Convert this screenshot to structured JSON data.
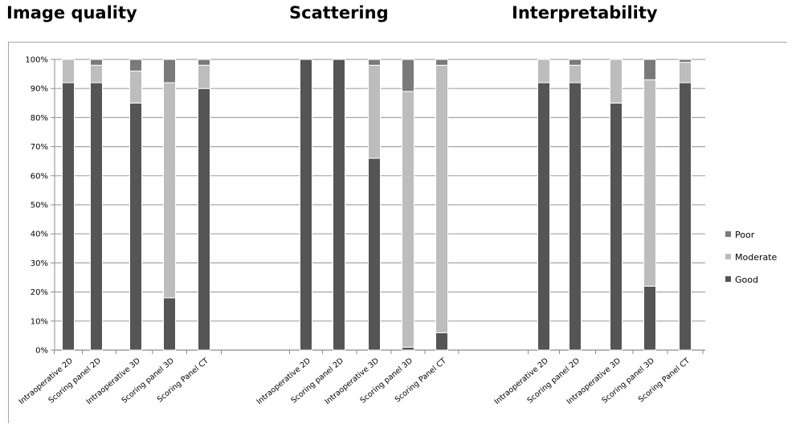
{
  "titles": [
    "Image quality",
    "Scattering",
    "Interpretability"
  ],
  "chart_data": {
    "type": "bar",
    "stacked": true,
    "percent": true,
    "y_ticks": [
      "0%",
      "10%",
      "20%",
      "30%",
      "40%",
      "50%",
      "60%",
      "70%",
      "80%",
      "90%",
      "100%"
    ],
    "ylim": [
      0,
      100
    ],
    "grid": true,
    "legend_position": "right",
    "colors": {
      "Good": "#555555",
      "Moderate": "#bdbdbd",
      "Poor": "#7a7a7a"
    },
    "legend": [
      "Poor",
      "Moderate",
      "Good"
    ],
    "groups": [
      {
        "title": "Image quality",
        "categories": [
          "Intraoperative 2D",
          "Scoring panel 2D",
          "Intraoperative 3D",
          "Scoring panel 3D",
          "Scoring Panel CT"
        ],
        "series": [
          {
            "name": "Good",
            "values": [
              92,
              92,
              85,
              18,
              90
            ]
          },
          {
            "name": "Moderate",
            "values": [
              8,
              6,
              11,
              74,
              8
            ]
          },
          {
            "name": "Poor",
            "values": [
              0,
              2,
              4,
              8,
              2
            ]
          }
        ]
      },
      {
        "title": "Scattering",
        "categories": [
          "Intraoperative 2D",
          "Scoring panel 2D",
          "Intraoperative 3D",
          "Scoring panel 3D",
          "Scoring Panel CT"
        ],
        "series": [
          {
            "name": "Good",
            "values": [
              100,
              100,
              66,
              1,
              6
            ]
          },
          {
            "name": "Moderate",
            "values": [
              0,
              0,
              32,
              88,
              92
            ]
          },
          {
            "name": "Poor",
            "values": [
              0,
              0,
              2,
              11,
              2
            ]
          }
        ]
      },
      {
        "title": "Interpretability",
        "categories": [
          "Intraoperative 2D",
          "Scoring panel 2D",
          "Intraoperative 3D",
          "Scoring panel 3D",
          "Scoring Panel CT"
        ],
        "series": [
          {
            "name": "Good",
            "values": [
              92,
              92,
              85,
              22,
              92
            ]
          },
          {
            "name": "Moderate",
            "values": [
              8,
              6,
              15,
              71,
              7
            ]
          },
          {
            "name": "Poor",
            "values": [
              0,
              2,
              0,
              7,
              1
            ]
          }
        ]
      }
    ]
  }
}
